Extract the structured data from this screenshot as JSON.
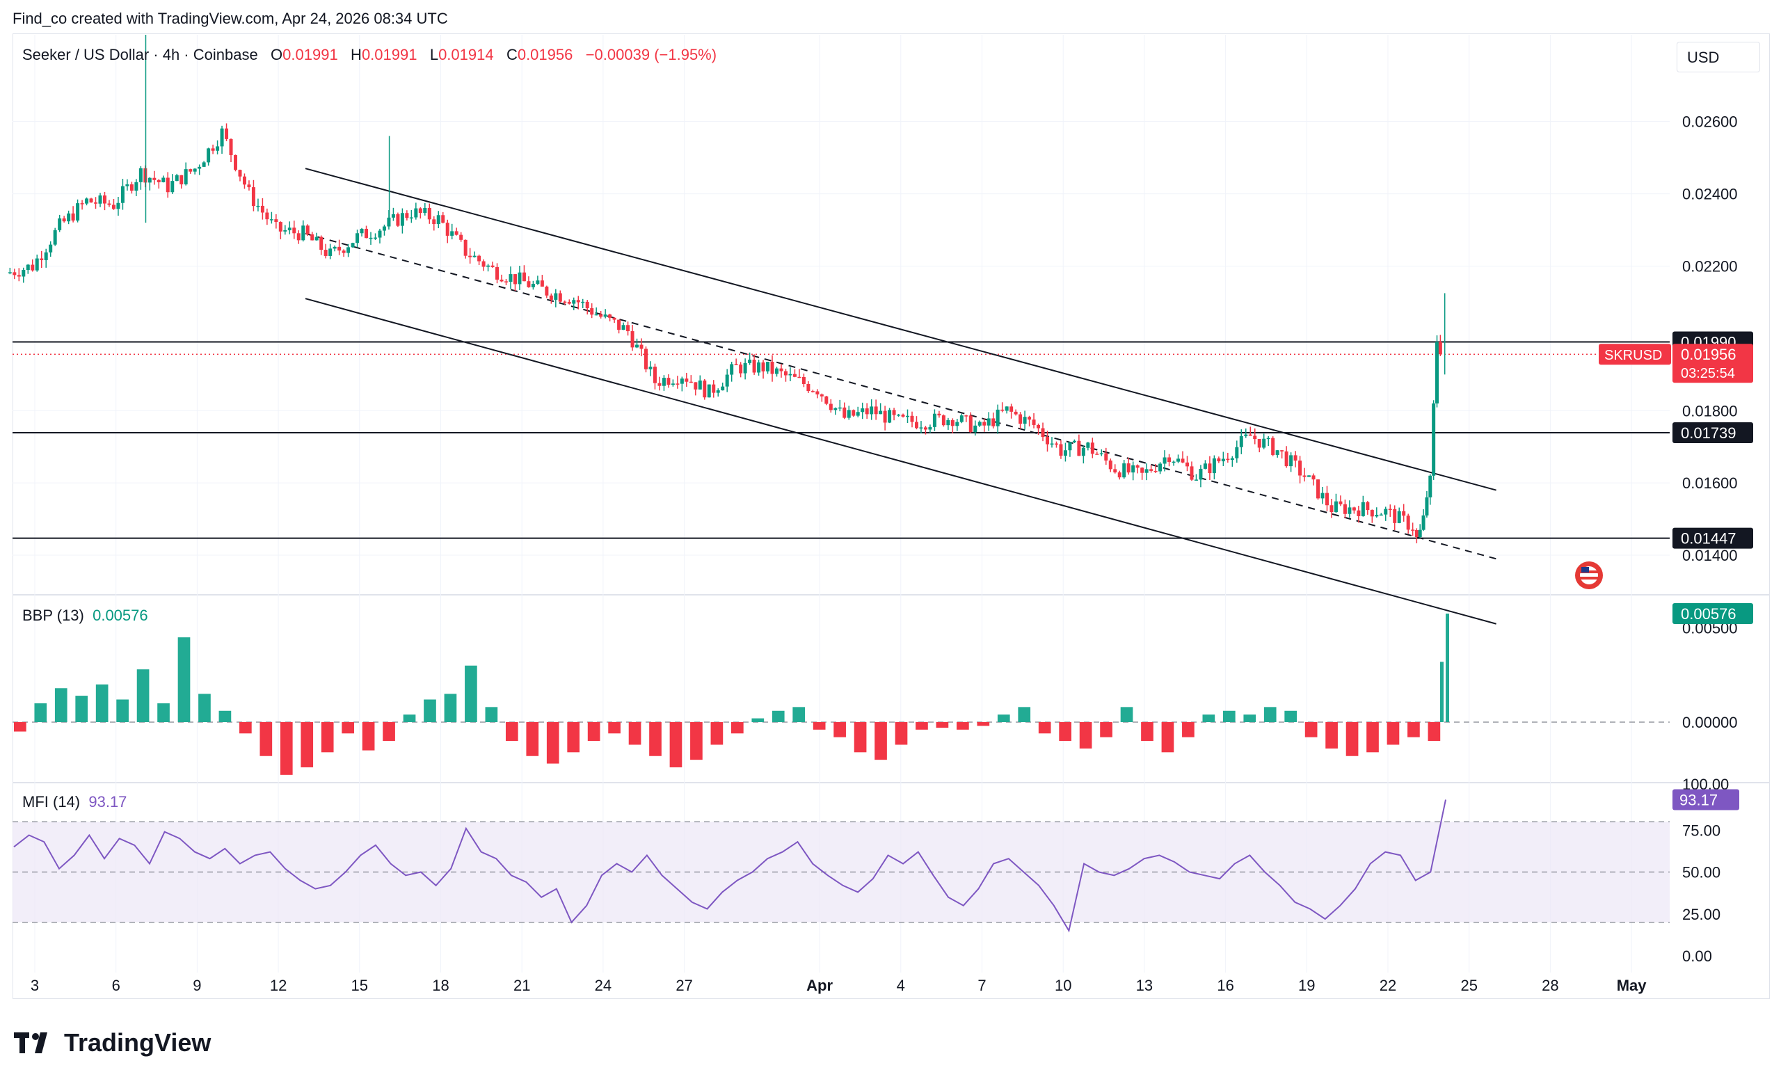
{
  "header": {
    "watermark": "Find_co created with TradingView.com, Apr 24, 2026 08:34 UTC"
  },
  "legend": {
    "symbol": "Seeker / US Dollar · 4h · Coinbase",
    "o_label": "O",
    "o_val": "0.01991",
    "h_label": "H",
    "h_val": "0.01991",
    "l_label": "L",
    "l_val": "0.01914",
    "c_label": "C",
    "c_val": "0.01956",
    "change": "−0.00039 (−1.95%)"
  },
  "currency": "USD",
  "brand": "TradingView",
  "colors": {
    "up": "#089981",
    "down": "#f23645",
    "bbp_up": "#22ab94",
    "mfi_line": "#7e57c2",
    "mfi_fill": "#ede7f6"
  },
  "price_tag": {
    "symbol": "SKRUSD",
    "price": "0.01956",
    "countdown": "03:25:54"
  },
  "chart_data": [
    {
      "type": "candlestick",
      "title": "Seeker / US Dollar · 4h · Coinbase",
      "currency": "USD",
      "ylim": [
        0.013,
        0.0284
      ],
      "yticks": [
        "0.02600",
        "0.02400",
        "0.02200",
        "0.01800",
        "0.01600",
        "0.01400"
      ],
      "xticks": [
        "3",
        "6",
        "9",
        "12",
        "15",
        "18",
        "21",
        "24",
        "27",
        "Apr",
        "4",
        "7",
        "10",
        "13",
        "16",
        "19",
        "22",
        "25",
        "28",
        "May"
      ],
      "horizontal_levels": [
        {
          "label": "0.01990",
          "value": 0.0199
        },
        {
          "label": "0.01739",
          "value": 0.01739
        },
        {
          "label": "0.01447",
          "value": 0.01447
        }
      ],
      "last_price": 0.01956,
      "close_path": [
        [
          "Mar 2",
          0.0218
        ],
        [
          "Mar 3",
          0.022
        ],
        [
          "Mar 4",
          0.0231
        ],
        [
          "Mar 5",
          0.0238
        ],
        [
          "Mar 6",
          0.0237
        ],
        [
          "Mar 7",
          0.0246
        ],
        [
          "Mar 8",
          0.0242
        ],
        [
          "Mar 9",
          0.0247
        ],
        [
          "Mar 10",
          0.0257
        ],
        [
          "Mar 11",
          0.024
        ],
        [
          "Mar 12",
          0.023
        ],
        [
          "Mar 13",
          0.0229
        ],
        [
          "Mar 14",
          0.0223
        ],
        [
          "Mar 15",
          0.0228
        ],
        [
          "Mar 16",
          0.0231
        ],
        [
          "Mar 17",
          0.0235
        ],
        [
          "Mar 18",
          0.0233
        ],
        [
          "Mar 19",
          0.0224
        ],
        [
          "Mar 20",
          0.0219
        ],
        [
          "Mar 21",
          0.0216
        ],
        [
          "Mar 22",
          0.0213
        ],
        [
          "Mar 23",
          0.0211
        ],
        [
          "Mar 24",
          0.0206
        ],
        [
          "Mar 25",
          0.0202
        ],
        [
          "Mar 26",
          0.0188
        ],
        [
          "Mar 27",
          0.019
        ],
        [
          "Mar 28",
          0.0185
        ],
        [
          "Mar 29",
          0.0192
        ],
        [
          "Mar 30",
          0.0192
        ],
        [
          "Mar 31",
          0.0189
        ],
        [
          "Apr 1",
          0.0186
        ],
        [
          "Apr 2",
          0.0178
        ],
        [
          "Apr 3",
          0.018
        ],
        [
          "Apr 4",
          0.0177
        ],
        [
          "Apr 5",
          0.0177
        ],
        [
          "Apr 6",
          0.0178
        ],
        [
          "Apr 7",
          0.0175
        ],
        [
          "Apr 8",
          0.018
        ],
        [
          "Apr 9",
          0.0176
        ],
        [
          "Apr 10",
          0.0169
        ],
        [
          "Apr 11",
          0.017
        ],
        [
          "Apr 12",
          0.0164
        ],
        [
          "Apr 13",
          0.0162
        ],
        [
          "Apr 14",
          0.0168
        ],
        [
          "Apr 15",
          0.0162
        ],
        [
          "Apr 16",
          0.0167
        ],
        [
          "Apr 17",
          0.0173
        ],
        [
          "Apr 18",
          0.0169
        ],
        [
          "Apr 19",
          0.0162
        ],
        [
          "Apr 20",
          0.0153
        ],
        [
          "Apr 21",
          0.0153
        ],
        [
          "Apr 22",
          0.0152
        ],
        [
          "Apr 23",
          0.0148
        ],
        [
          "Apr 24",
          0.0196
        ]
      ],
      "channel_lines": {
        "upper": [
          [
            "Mar 13",
            0.0247
          ],
          [
            "Apr 26",
            0.0158
          ]
        ],
        "middle_dashed": [
          [
            "Mar 13",
            0.0229
          ],
          [
            "Apr 26",
            0.0139
          ]
        ],
        "lower": [
          [
            "Mar 13",
            0.0211
          ],
          [
            "Apr 26",
            0.0121
          ]
        ]
      }
    },
    {
      "type": "bar",
      "title": "BBP (13)",
      "last_value_label": "0.00576",
      "yticks": [
        "0.00500",
        "0.00000"
      ],
      "values": [
        -0.0005,
        0.001,
        0.0018,
        0.0014,
        0.002,
        0.0012,
        0.0028,
        0.001,
        0.0045,
        0.0015,
        0.0006,
        -0.0006,
        -0.0018,
        -0.0028,
        -0.0024,
        -0.0016,
        -0.0006,
        -0.0015,
        -0.001,
        0.0004,
        0.0012,
        0.0015,
        0.003,
        0.0008,
        -0.001,
        -0.0018,
        -0.0022,
        -0.0016,
        -0.001,
        -0.0006,
        -0.0012,
        -0.0018,
        -0.0024,
        -0.002,
        -0.0012,
        -0.0006,
        0.0002,
        0.0006,
        0.0008,
        -0.0004,
        -0.0008,
        -0.0016,
        -0.002,
        -0.0012,
        -0.0004,
        -0.0003,
        -0.0004,
        -0.0002,
        0.0004,
        0.0008,
        -0.0006,
        -0.001,
        -0.0014,
        -0.0008,
        0.0008,
        -0.001,
        -0.0016,
        -0.0008,
        0.0004,
        0.0006,
        0.0004,
        0.0008,
        0.0006,
        -0.0008,
        -0.0014,
        -0.0018,
        -0.0016,
        -0.0012,
        -0.0008,
        -0.001,
        0.0032,
        0.00576
      ]
    },
    {
      "type": "line",
      "title": "MFI (14)",
      "last_value_label": "93.17",
      "ylim": [
        0,
        100
      ],
      "yticks": [
        "100.00",
        "75.00",
        "50.00",
        "25.00",
        "0.00"
      ],
      "bands": [
        80,
        50,
        20
      ],
      "values": [
        65,
        72,
        68,
        52,
        60,
        72,
        58,
        70,
        66,
        55,
        74,
        70,
        62,
        58,
        64,
        55,
        60,
        62,
        52,
        45,
        40,
        42,
        50,
        60,
        66,
        55,
        48,
        50,
        42,
        52,
        76,
        62,
        58,
        48,
        44,
        35,
        40,
        20,
        30,
        48,
        55,
        50,
        60,
        48,
        40,
        32,
        28,
        38,
        45,
        50,
        58,
        62,
        68,
        55,
        48,
        42,
        38,
        46,
        60,
        55,
        62,
        48,
        35,
        30,
        40,
        55,
        58,
        50,
        42,
        30,
        15,
        55,
        50,
        48,
        52,
        58,
        60,
        56,
        50,
        48,
        46,
        55,
        60,
        50,
        42,
        32,
        28,
        22,
        30,
        40,
        55,
        62,
        60,
        45,
        50,
        93.17
      ]
    }
  ]
}
